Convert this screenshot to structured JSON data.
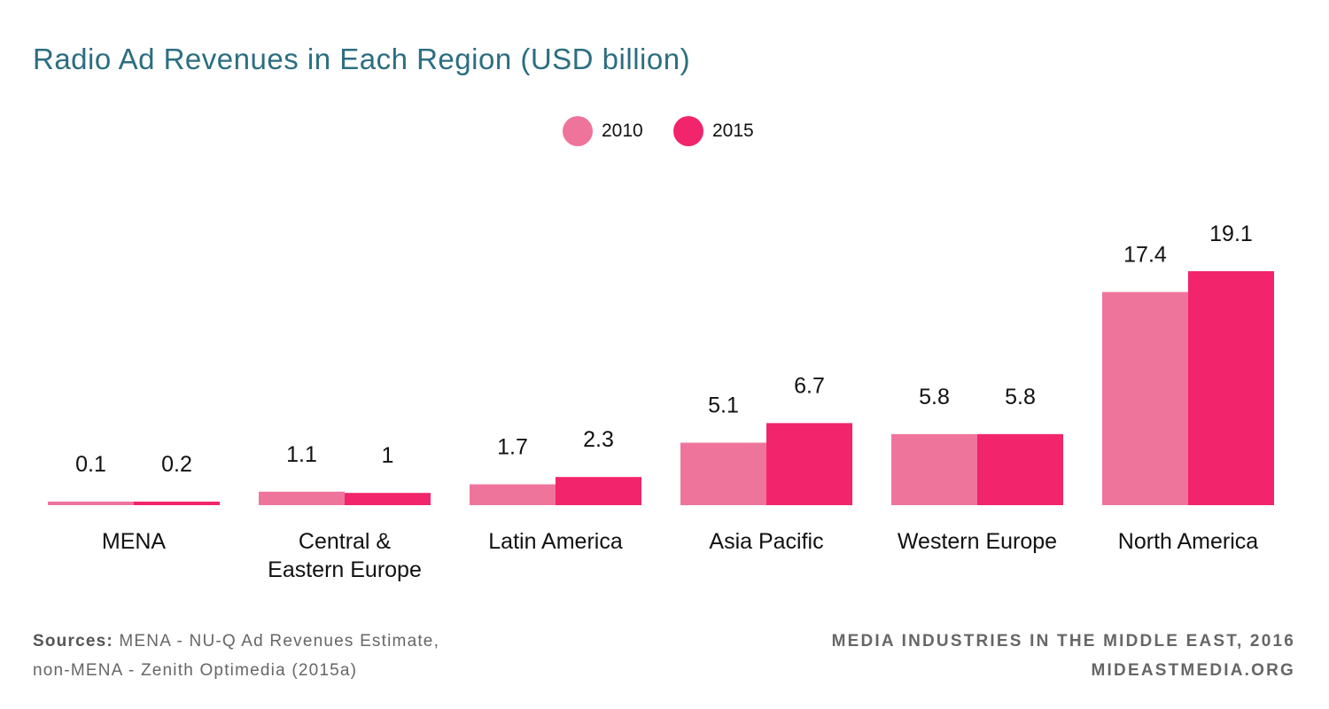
{
  "chart_data": {
    "type": "bar",
    "title": "Radio Ad Revenues in Each Region (USD billion)",
    "categories": [
      [
        "MENA"
      ],
      [
        "Central &",
        "Eastern Europe"
      ],
      [
        "Latin America"
      ],
      [
        "Asia Pacific"
      ],
      [
        "Western Europe"
      ],
      [
        "North America"
      ]
    ],
    "series": [
      {
        "name": "2010",
        "color": "#ef749b",
        "values": [
          0.1,
          1.1,
          1.7,
          5.1,
          5.8,
          17.4
        ],
        "labels": [
          "0.1",
          "1.1",
          "1.7",
          "5.1",
          "5.8",
          "17.4"
        ]
      },
      {
        "name": "2015",
        "color": "#f2246b",
        "values": [
          0.2,
          1,
          2.3,
          6.7,
          5.8,
          19.1
        ],
        "labels": [
          "0.2",
          "1",
          "2.3",
          "6.7",
          "5.8",
          "19.1"
        ]
      }
    ],
    "xlabel": "",
    "ylabel": "",
    "ylim": [
      0,
      19.1
    ],
    "grid": false,
    "legend_position": "top-center"
  },
  "footer": {
    "sources_label": "Sources:",
    "sources_line1": " MENA - NU-Q Ad Revenues Estimate,",
    "sources_line2": "non-MENA - Zenith Optimedia (2015a)",
    "publication": "MEDIA INDUSTRIES IN THE MIDDLE EAST, 2016",
    "website": "MIDEASTMEDIA.ORG"
  }
}
